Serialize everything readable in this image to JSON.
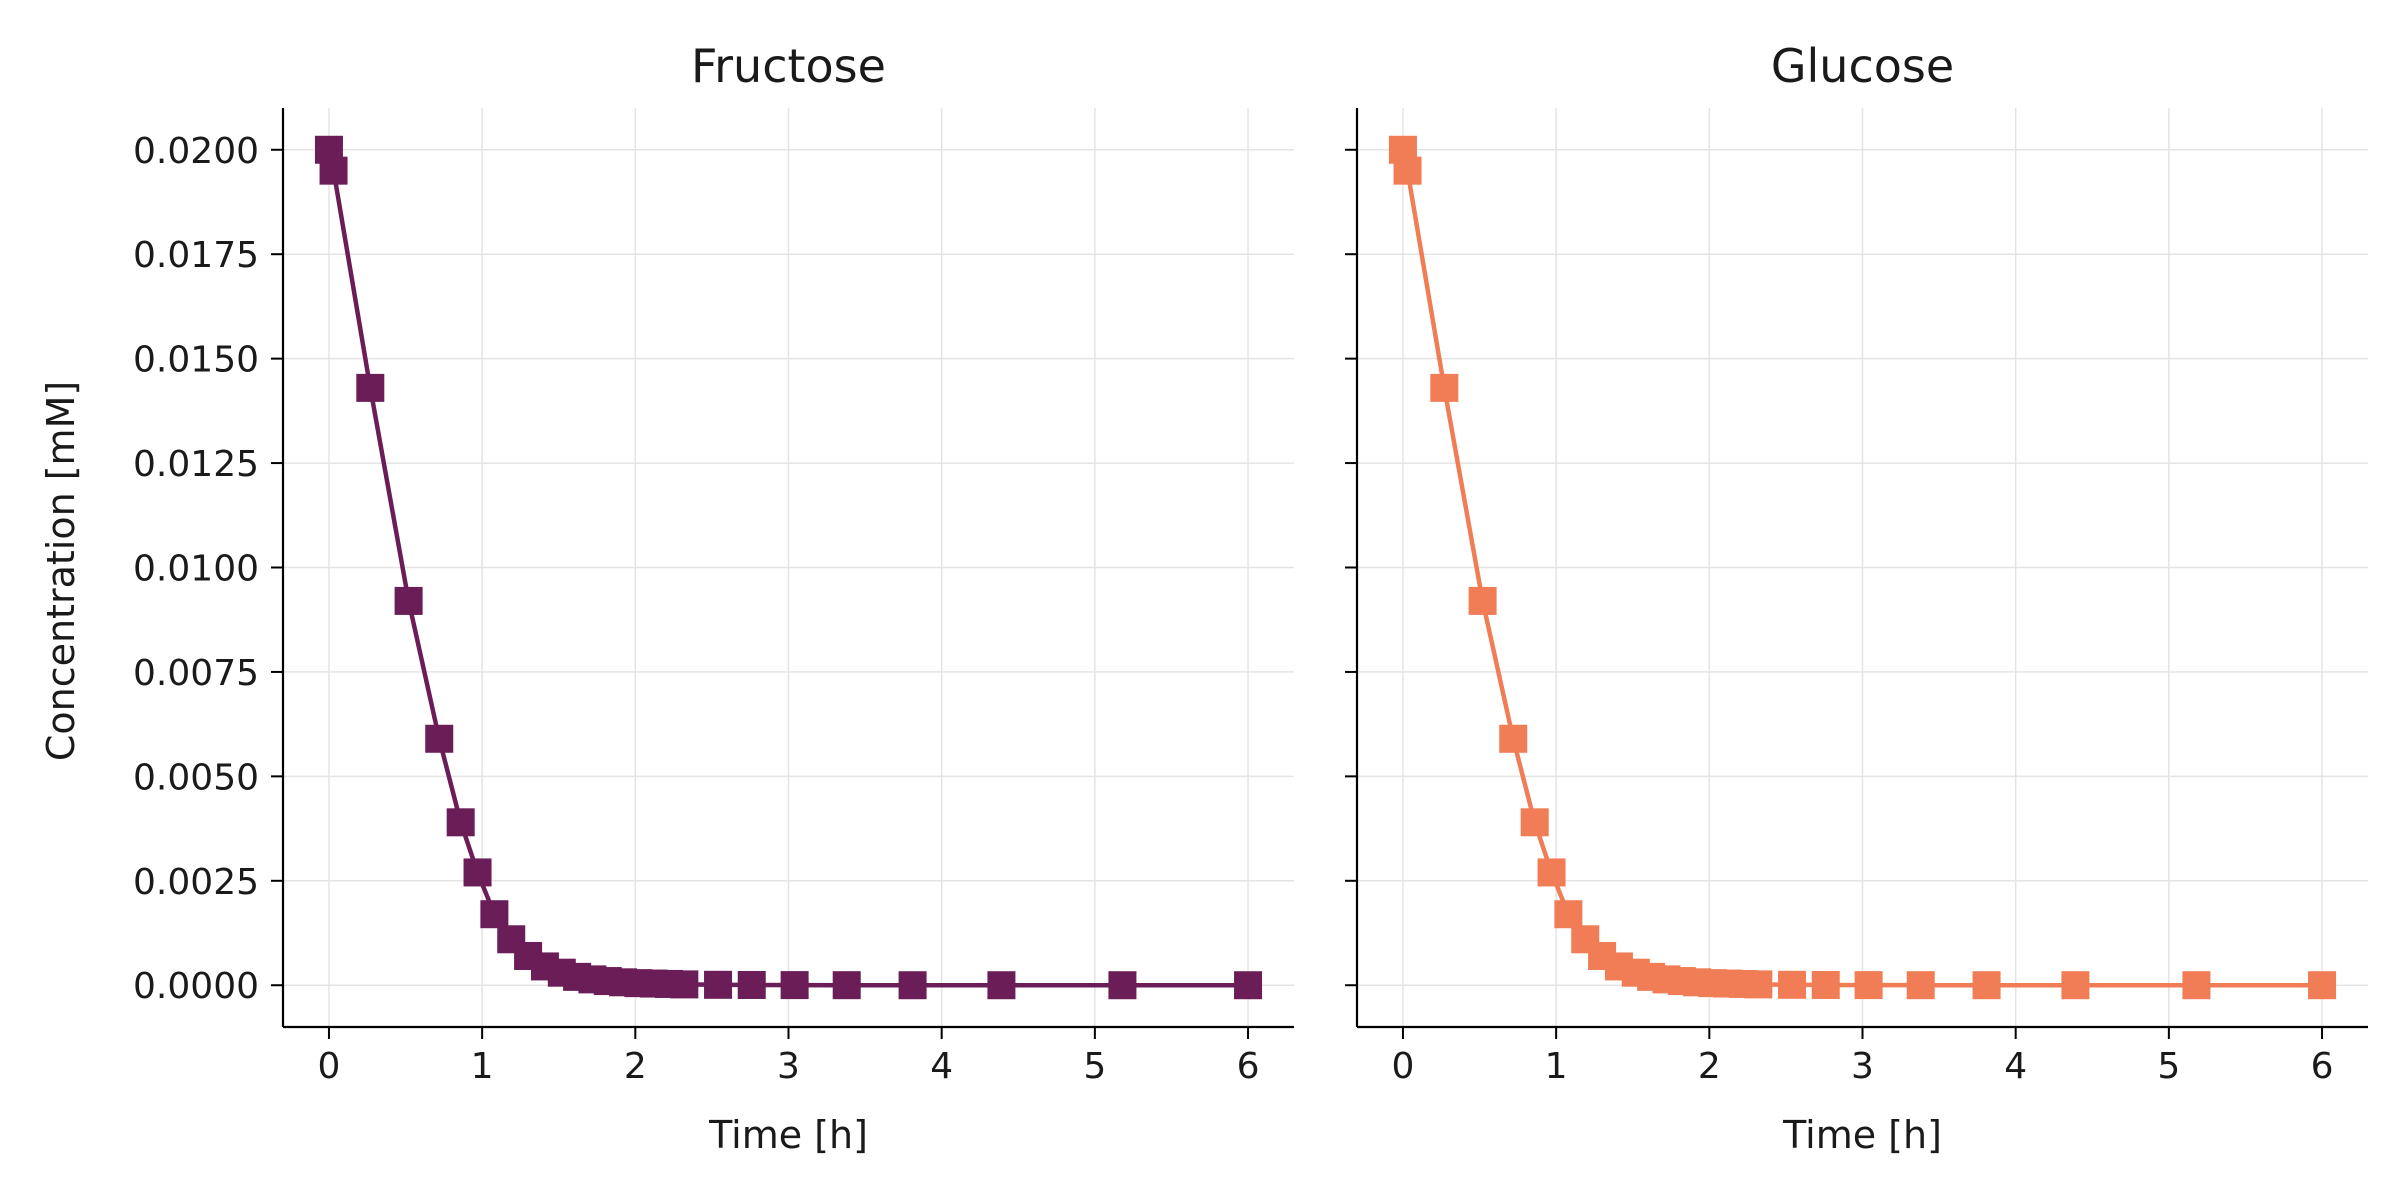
{
  "figure": {
    "shared_ylabel": "Concentration [mM]"
  },
  "chart_data": [
    {
      "type": "line",
      "title": "Fructose",
      "xlabel": "Time [h]",
      "ylabel": "Concentration [mM]",
      "xlim": [
        -0.3,
        6.3
      ],
      "ylim": [
        -0.001,
        0.021
      ],
      "xticks": [
        0,
        1,
        2,
        3,
        4,
        5,
        6
      ],
      "xtick_labels": [
        "0",
        "1",
        "2",
        "3",
        "4",
        "5",
        "6"
      ],
      "yticks": [
        0,
        0.0025,
        0.005,
        0.0075,
        0.01,
        0.0125,
        0.015,
        0.0175,
        0.02
      ],
      "ytick_labels": [
        "0.0000",
        "0.0025",
        "0.0050",
        "0.0075",
        "0.0100",
        "0.0125",
        "0.0150",
        "0.0175",
        "0.0200"
      ],
      "grid": true,
      "marker": "square",
      "color": "#6a1d57",
      "series": [
        {
          "x": [
            0,
            0.03,
            0.27,
            0.52,
            0.72,
            0.86,
            0.97,
            1.08,
            1.19,
            1.3,
            1.41,
            1.52,
            1.62,
            1.72,
            1.82,
            1.92,
            2.02,
            2.12,
            2.22,
            2.32,
            2.54,
            2.76,
            3.04,
            3.38,
            3.81,
            4.39,
            5.18,
            6.0
          ],
          "y": [
            0.02,
            0.0195,
            0.0143,
            0.0092,
            0.0059,
            0.0039,
            0.0027,
            0.0017,
            0.0011,
            0.0007,
            0.00045,
            0.0003,
            0.0002,
            0.00014,
            0.0001,
            7e-05,
            5e-05,
            4e-05,
            3e-05,
            2e-05,
            1e-05,
            6e-06,
            3e-06,
            1e-06,
            0,
            0,
            0,
            0
          ]
        }
      ]
    },
    {
      "type": "line",
      "title": "Glucose",
      "xlabel": "Time [h]",
      "ylabel": "",
      "xlim": [
        -0.3,
        6.3
      ],
      "ylim": [
        -0.001,
        0.021
      ],
      "xticks": [
        0,
        1,
        2,
        3,
        4,
        5,
        6
      ],
      "xtick_labels": [
        "0",
        "1",
        "2",
        "3",
        "4",
        "5",
        "6"
      ],
      "yticks": [
        0,
        0.0025,
        0.005,
        0.0075,
        0.01,
        0.0125,
        0.015,
        0.0175,
        0.02
      ],
      "ytick_labels": [],
      "grid": true,
      "marker": "square",
      "color": "#f07d55",
      "series": [
        {
          "x": [
            0,
            0.03,
            0.27,
            0.52,
            0.72,
            0.86,
            0.97,
            1.08,
            1.19,
            1.3,
            1.41,
            1.52,
            1.62,
            1.72,
            1.82,
            1.92,
            2.02,
            2.12,
            2.22,
            2.32,
            2.54,
            2.76,
            3.04,
            3.38,
            3.81,
            4.39,
            5.18,
            6.0
          ],
          "y": [
            0.02,
            0.0195,
            0.0143,
            0.0092,
            0.0059,
            0.0039,
            0.0027,
            0.0017,
            0.0011,
            0.0007,
            0.00045,
            0.0003,
            0.0002,
            0.00014,
            0.0001,
            7e-05,
            5e-05,
            4e-05,
            3e-05,
            2e-05,
            1e-05,
            6e-06,
            3e-06,
            1e-06,
            0,
            0,
            0,
            0
          ]
        }
      ]
    }
  ]
}
